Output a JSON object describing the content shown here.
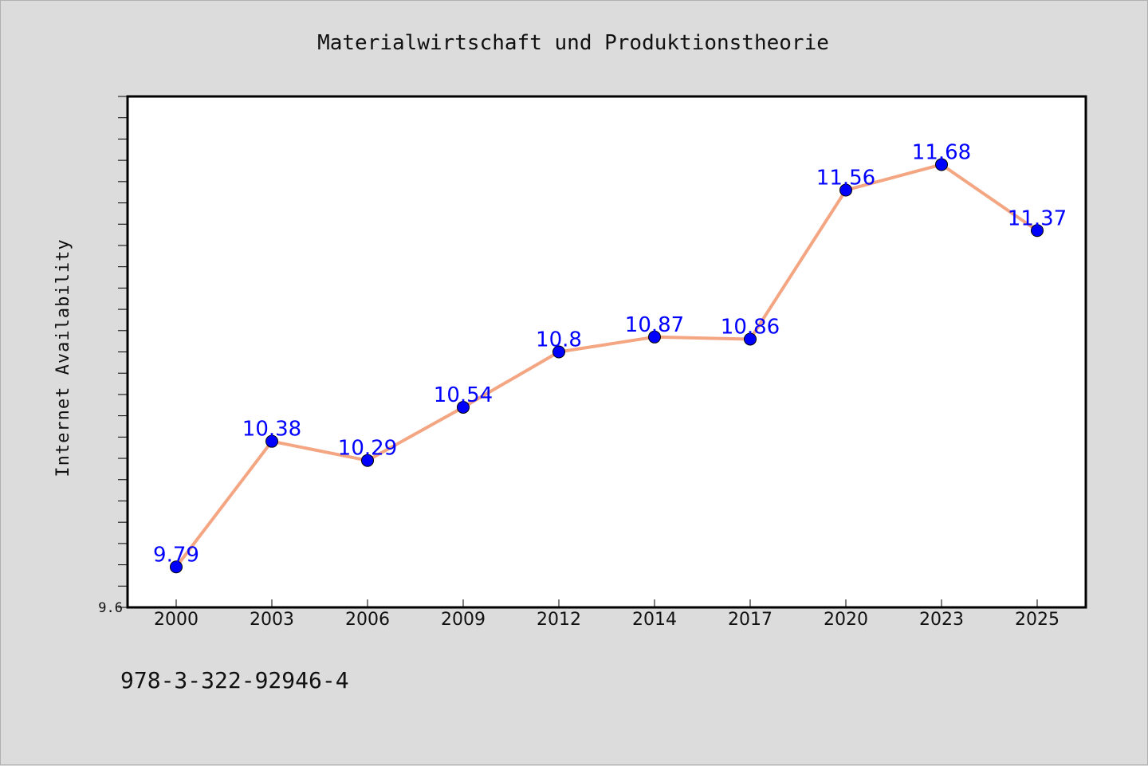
{
  "footer": {
    "isbn": "978-3-322-92946-4"
  },
  "chart_data": {
    "type": "line",
    "title": "Materialwirtschaft und Produktionstheorie",
    "xlabel": "",
    "ylabel": "Internet Availability",
    "categories": [
      "2000",
      "2003",
      "2006",
      "2009",
      "2012",
      "2014",
      "2017",
      "2020",
      "2023",
      "2025"
    ],
    "series": [
      {
        "values": [
          9.79,
          10.38,
          10.29,
          10.54,
          10.8,
          10.87,
          10.86,
          11.56,
          11.68,
          11.37
        ],
        "line_color": "#f4a582",
        "marker_color": "#0000ff",
        "data_labels": [
          "9.79",
          "10.38",
          "10.29",
          "10.54",
          "10.8",
          "10.87",
          "10.86",
          "11.56",
          "11.68",
          "11.37"
        ]
      }
    ],
    "ylim": [
      9.6,
      12.0
    ],
    "y_tick_labels": [
      "9.6"
    ],
    "grid": false,
    "legend": "none"
  }
}
